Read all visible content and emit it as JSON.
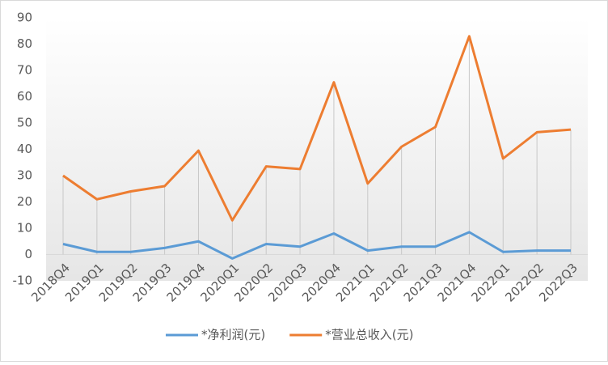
{
  "chart_data": {
    "type": "line",
    "categories": [
      "2018Q4",
      "2019Q1",
      "2019Q2",
      "2019Q3",
      "2019Q4",
      "2020Q1",
      "2020Q2",
      "2020Q3",
      "2020Q4",
      "2021Q1",
      "2021Q2",
      "2021Q3",
      "2021Q4",
      "2022Q1",
      "2022Q2",
      "2022Q3"
    ],
    "series": [
      {
        "name": "*净利润(元)",
        "color": "#5b9bd5",
        "values": [
          4,
          1,
          1,
          2.5,
          5,
          -1.5,
          4,
          3,
          8,
          1.5,
          3,
          3,
          8.5,
          1,
          1.5,
          1.5
        ]
      },
      {
        "name": "*营业总收入(元)",
        "color": "#ed7d31",
        "values": [
          30,
          21,
          24,
          26,
          39.5,
          13,
          33.5,
          32.5,
          65.5,
          27,
          41,
          48.5,
          83,
          36.5,
          46.5,
          47.5
        ]
      }
    ],
    "ylim": [
      -10,
      90
    ],
    "yticks": [
      -10,
      0,
      10,
      20,
      30,
      40,
      50,
      60,
      70,
      80,
      90
    ],
    "drop_lines": true,
    "legend": "bottom"
  }
}
